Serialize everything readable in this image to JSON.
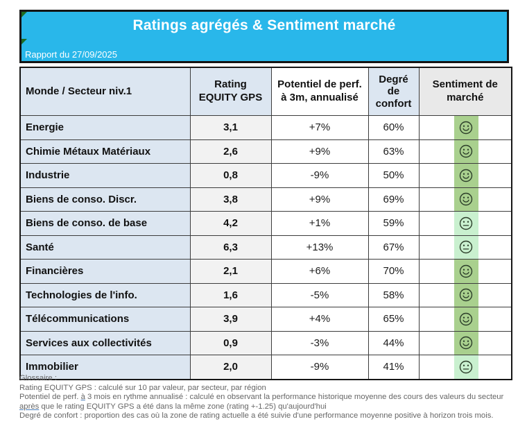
{
  "header": {
    "title": "Ratings agrégés & Sentiment marché",
    "subtitle": "Rapport du 27/09/2025",
    "bg_color": "#29b7ea"
  },
  "table": {
    "columns": [
      "Monde / Secteur niv.1",
      "Rating\nEQUITY GPS",
      "Potentiel de perf.\nà 3m, annualisé",
      "Degré\nde\nconfort",
      "Sentiment de\nmarché"
    ],
    "rows": [
      {
        "sector": "Energie",
        "rating": "3,1",
        "potential": "+7%",
        "comfort": "60%",
        "sentiment": "happy"
      },
      {
        "sector": "Chimie Métaux Matériaux",
        "rating": "2,6",
        "potential": "+9%",
        "comfort": "63%",
        "sentiment": "happy"
      },
      {
        "sector": "Industrie",
        "rating": "0,8",
        "potential": "-9%",
        "comfort": "50%",
        "sentiment": "happy"
      },
      {
        "sector": "Biens de conso. Discr.",
        "rating": "3,8",
        "potential": "+9%",
        "comfort": "69%",
        "sentiment": "happy"
      },
      {
        "sector": "Biens de conso. de base",
        "rating": "4,2",
        "potential": "+1%",
        "comfort": "59%",
        "sentiment": "neutral"
      },
      {
        "sector": "Santé",
        "rating": "6,3",
        "potential": "+13%",
        "comfort": "67%",
        "sentiment": "neutral"
      },
      {
        "sector": "Financières",
        "rating": "2,1",
        "potential": "+6%",
        "comfort": "70%",
        "sentiment": "happy"
      },
      {
        "sector": "Technologies de l'info.",
        "rating": "1,6",
        "potential": "-5%",
        "comfort": "58%",
        "sentiment": "happy"
      },
      {
        "sector": "Télécommunications",
        "rating": "3,9",
        "potential": "+4%",
        "comfort": "65%",
        "sentiment": "happy"
      },
      {
        "sector": "Services aux collectivités",
        "rating": "0,9",
        "potential": "-3%",
        "comfort": "44%",
        "sentiment": "happy"
      },
      {
        "sector": "Immobilier",
        "rating": "2,0",
        "potential": "-9%",
        "comfort": "41%",
        "sentiment": "neutral"
      }
    ],
    "sentiment_colors": {
      "happy": "#a9d08e",
      "neutral": "#c9f0cf"
    },
    "sentiment_icons": {
      "happy": "smiley-happy-icon",
      "neutral": "smiley-neutral-icon"
    }
  },
  "glossary": {
    "lines": [
      {
        "segments": [
          {
            "t": "Glossaire :"
          }
        ]
      },
      {
        "segments": [
          {
            "t": "Rating EQUITY GPS : calculé sur 10 par valeur, par secteur, par région"
          }
        ]
      },
      {
        "segments": [
          {
            "t": "Potentiel de perf. "
          },
          {
            "t": "à",
            "u": true
          },
          {
            "t": " 3 mois en rythme annualisé : calculé en observant la performance historique moyenne des cours des valeurs du secteur"
          }
        ]
      },
      {
        "segments": [
          {
            "t": "après",
            "u": true
          },
          {
            "t": " que le rating EQUITY GPS a été dans la même zone (rating +-1.25) qu'aujourd'hui"
          }
        ]
      },
      {
        "segments": [
          {
            "t": "Degré de confort : proportion des cas où la zone de rating actuelle a été suivie d'une performance moyenne positive à horizon trois mois."
          }
        ]
      }
    ]
  }
}
